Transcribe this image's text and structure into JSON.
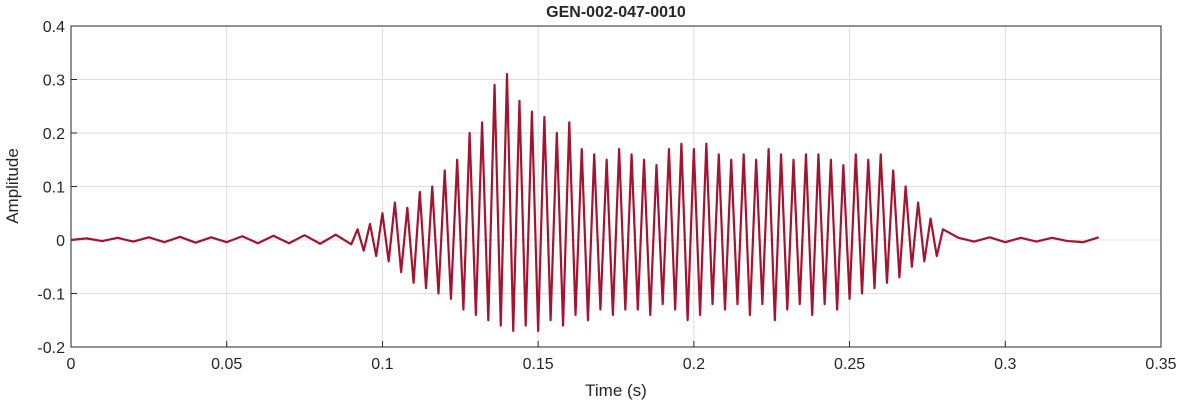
{
  "chart_data": {
    "type": "line",
    "title": "GEN-002-047-0010",
    "x_label": "Time (s)",
    "y_label": "Amplitude",
    "x": [
      0,
      0.005,
      0.01,
      0.015,
      0.02,
      0.025,
      0.03,
      0.035,
      0.04,
      0.045,
      0.05,
      0.055,
      0.06,
      0.065,
      0.07,
      0.075,
      0.08,
      0.085,
      0.09,
      0.092,
      0.094,
      0.096,
      0.098,
      0.1,
      0.102,
      0.104,
      0.106,
      0.108,
      0.11,
      0.112,
      0.114,
      0.116,
      0.118,
      0.12,
      0.122,
      0.124,
      0.126,
      0.128,
      0.13,
      0.132,
      0.134,
      0.136,
      0.138,
      0.14,
      0.142,
      0.144,
      0.146,
      0.148,
      0.15,
      0.152,
      0.154,
      0.156,
      0.158,
      0.16,
      0.162,
      0.164,
      0.166,
      0.168,
      0.17,
      0.172,
      0.174,
      0.176,
      0.178,
      0.18,
      0.182,
      0.184,
      0.186,
      0.188,
      0.19,
      0.192,
      0.194,
      0.196,
      0.198,
      0.2,
      0.202,
      0.204,
      0.206,
      0.208,
      0.21,
      0.212,
      0.214,
      0.216,
      0.218,
      0.22,
      0.222,
      0.224,
      0.226,
      0.228,
      0.23,
      0.232,
      0.234,
      0.236,
      0.238,
      0.24,
      0.242,
      0.244,
      0.246,
      0.248,
      0.25,
      0.252,
      0.254,
      0.256,
      0.258,
      0.26,
      0.262,
      0.264,
      0.266,
      0.268,
      0.27,
      0.272,
      0.274,
      0.276,
      0.278,
      0.28,
      0.285,
      0.29,
      0.295,
      0.3,
      0.305,
      0.31,
      0.315,
      0.32,
      0.325,
      0.33
    ],
    "series": [
      {
        "color": "#a2142f",
        "values": [
          0,
          0.003,
          -0.002,
          0.004,
          -0.003,
          0.005,
          -0.004,
          0.006,
          -0.005,
          0.005,
          -0.004,
          0.007,
          -0.006,
          0.008,
          -0.006,
          0.009,
          -0.007,
          0.01,
          -0.008,
          0.02,
          -0.02,
          0.03,
          -0.03,
          0.05,
          -0.04,
          0.07,
          -0.06,
          0.06,
          -0.08,
          0.09,
          -0.09,
          0.1,
          -0.1,
          0.13,
          -0.11,
          0.15,
          -0.13,
          0.2,
          -0.14,
          0.22,
          -0.15,
          0.29,
          -0.16,
          0.31,
          -0.17,
          0.26,
          -0.16,
          0.24,
          -0.17,
          0.23,
          -0.15,
          0.2,
          -0.16,
          0.22,
          -0.14,
          0.17,
          -0.15,
          0.16,
          -0.13,
          0.15,
          -0.14,
          0.17,
          -0.13,
          0.16,
          -0.13,
          0.15,
          -0.14,
          0.14,
          -0.12,
          0.17,
          -0.13,
          0.18,
          -0.15,
          0.17,
          -0.14,
          0.18,
          -0.12,
          0.16,
          -0.13,
          0.15,
          -0.12,
          0.16,
          -0.14,
          0.15,
          -0.12,
          0.17,
          -0.15,
          0.16,
          -0.13,
          0.15,
          -0.12,
          0.16,
          -0.14,
          0.16,
          -0.12,
          0.15,
          -0.13,
          0.14,
          -0.11,
          0.16,
          -0.1,
          0.15,
          -0.09,
          0.16,
          -0.08,
          0.13,
          -0.07,
          0.1,
          -0.05,
          0.07,
          -0.04,
          0.04,
          -0.03,
          0.02,
          0.004,
          -0.003,
          0.005,
          -0.004,
          0.004,
          -0.003,
          0.004,
          -0.002,
          -0.004,
          0.005
        ]
      }
    ],
    "xlim": [
      0,
      0.35
    ],
    "xticks": [
      0,
      0.05,
      0.1,
      0.15,
      0.2,
      0.25,
      0.3,
      0.35
    ],
    "ylim": [
      -0.2,
      0.4
    ],
    "yticks": [
      -0.2,
      -0.1,
      0,
      0.1,
      0.2,
      0.3,
      0.4
    ],
    "grid": true
  }
}
